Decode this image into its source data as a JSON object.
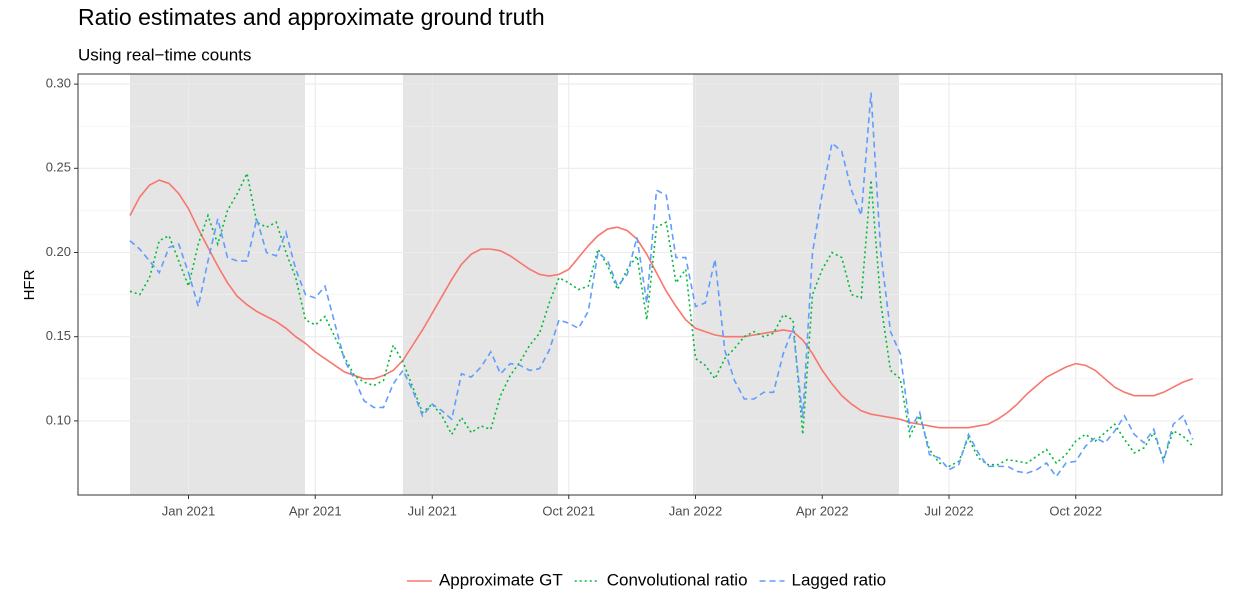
{
  "chart_data": {
    "type": "line",
    "title": "Ratio estimates and approximate ground truth",
    "subtitle": "Using real−time counts",
    "y_label": "HFR",
    "categories": [
      null,
      null,
      null,
      null,
      null,
      null,
      "Jan 2021",
      null,
      null,
      null,
      null,
      null,
      null,
      null,
      null,
      null,
      null,
      null,
      null,
      "Apr 2021",
      null,
      null,
      null,
      null,
      null,
      null,
      null,
      null,
      null,
      null,
      null,
      "Jul 2021",
      null,
      null,
      null,
      null,
      null,
      null,
      null,
      null,
      null,
      null,
      null,
      null,
      null,
      "Oct 2021",
      null,
      null,
      null,
      null,
      null,
      null,
      null,
      null,
      null,
      null,
      null,
      null,
      "Jan 2022",
      null,
      null,
      null,
      null,
      null,
      null,
      null,
      null,
      null,
      null,
      null,
      null,
      "Apr 2022",
      null,
      null,
      null,
      null,
      null,
      null,
      null,
      null,
      null,
      null,
      null,
      null,
      "Jul 2022",
      null,
      null,
      null,
      null,
      null,
      null,
      null,
      null,
      null,
      null,
      null,
      null,
      "Oct 2022",
      null,
      null,
      null,
      null,
      null,
      null,
      null,
      null,
      null,
      null,
      null,
      null
    ],
    "series": [
      {
        "name": "Approximate GT",
        "color": "#F8766D",
        "dash": "solid",
        "values": [
          0.222,
          0.233,
          0.24,
          0.243,
          0.241,
          0.235,
          0.226,
          0.214,
          0.203,
          0.192,
          0.182,
          0.174,
          0.169,
          0.165,
          0.162,
          0.159,
          0.155,
          0.15,
          0.146,
          0.141,
          0.137,
          0.133,
          0.129,
          0.127,
          0.125,
          0.125,
          0.127,
          0.13,
          0.136,
          0.145,
          0.154,
          0.164,
          0.174,
          0.184,
          0.193,
          0.199,
          0.202,
          0.202,
          0.201,
          0.198,
          0.194,
          0.19,
          0.187,
          0.186,
          0.187,
          0.19,
          0.197,
          0.204,
          0.21,
          0.214,
          0.215,
          0.213,
          0.208,
          0.199,
          0.188,
          0.177,
          0.168,
          0.16,
          0.155,
          0.153,
          0.151,
          0.15,
          0.15,
          0.15,
          0.151,
          0.152,
          0.153,
          0.154,
          0.153,
          0.148,
          0.14,
          0.13,
          0.122,
          0.115,
          0.11,
          0.106,
          0.104,
          0.103,
          0.102,
          0.101,
          0.099,
          0.098,
          0.097,
          0.096,
          0.096,
          0.096,
          0.096,
          0.097,
          0.098,
          0.101,
          0.105,
          0.11,
          0.116,
          0.121,
          0.126,
          0.129,
          0.132,
          0.134,
          0.133,
          0.13,
          0.125,
          0.12,
          0.117,
          0.115,
          0.115,
          0.115,
          0.117,
          0.12,
          0.123,
          0.125
        ]
      },
      {
        "name": "Convolutional ratio",
        "color": "#00BA38",
        "dash": "dotted",
        "values": [
          0.177,
          0.175,
          0.185,
          0.207,
          0.21,
          0.195,
          0.18,
          0.205,
          0.222,
          0.205,
          0.225,
          0.235,
          0.247,
          0.218,
          0.215,
          0.218,
          0.2,
          0.185,
          0.16,
          0.157,
          0.162,
          0.15,
          0.138,
          0.127,
          0.123,
          0.121,
          0.124,
          0.145,
          0.135,
          0.12,
          0.105,
          0.11,
          0.103,
          0.092,
          0.102,
          0.093,
          0.097,
          0.095,
          0.115,
          0.127,
          0.135,
          0.145,
          0.152,
          0.17,
          0.185,
          0.182,
          0.178,
          0.18,
          0.202,
          0.192,
          0.178,
          0.19,
          0.198,
          0.16,
          0.215,
          0.218,
          0.182,
          0.19,
          0.137,
          0.133,
          0.125,
          0.137,
          0.143,
          0.15,
          0.153,
          0.15,
          0.152,
          0.163,
          0.16,
          0.092,
          0.175,
          0.19,
          0.2,
          0.197,
          0.175,
          0.173,
          0.243,
          0.17,
          0.13,
          0.125,
          0.091,
          0.103,
          0.083,
          0.075,
          0.073,
          0.076,
          0.09,
          0.078,
          0.074,
          0.074,
          0.077,
          0.076,
          0.075,
          0.079,
          0.083,
          0.075,
          0.08,
          0.088,
          0.092,
          0.088,
          0.093,
          0.098,
          0.089,
          0.081,
          0.084,
          0.093,
          0.077,
          0.094,
          0.091,
          0.085
        ]
      },
      {
        "name": "Lagged ratio",
        "color": "#619CFF",
        "dash": "dashed",
        "values": [
          0.207,
          0.202,
          0.195,
          0.188,
          0.203,
          0.205,
          0.188,
          0.168,
          0.195,
          0.22,
          0.197,
          0.195,
          0.195,
          0.22,
          0.2,
          0.198,
          0.212,
          0.19,
          0.175,
          0.173,
          0.18,
          0.158,
          0.136,
          0.125,
          0.112,
          0.108,
          0.108,
          0.122,
          0.13,
          0.118,
          0.103,
          0.11,
          0.106,
          0.101,
          0.128,
          0.126,
          0.132,
          0.141,
          0.128,
          0.134,
          0.133,
          0.13,
          0.131,
          0.142,
          0.16,
          0.158,
          0.155,
          0.165,
          0.2,
          0.195,
          0.18,
          0.187,
          0.209,
          0.17,
          0.237,
          0.234,
          0.197,
          0.197,
          0.168,
          0.17,
          0.196,
          0.142,
          0.124,
          0.113,
          0.113,
          0.117,
          0.117,
          0.14,
          0.155,
          0.102,
          0.2,
          0.235,
          0.265,
          0.26,
          0.237,
          0.222,
          0.295,
          0.2,
          0.153,
          0.14,
          0.095,
          0.105,
          0.08,
          0.078,
          0.071,
          0.074,
          0.092,
          0.081,
          0.073,
          0.073,
          0.073,
          0.07,
          0.069,
          0.071,
          0.075,
          0.067,
          0.075,
          0.076,
          0.085,
          0.09,
          0.087,
          0.094,
          0.103,
          0.092,
          0.087,
          0.095,
          0.076,
          0.098,
          0.103,
          0.089
        ]
      }
    ],
    "ylim": [
      0.056,
      0.306
    ],
    "yticks": [
      {
        "value": 0.1,
        "label": "0.10"
      },
      0.15,
      {
        "value": 0.2,
        "label": "0.20"
      },
      0.25,
      {
        "value": 0.3,
        "label": "0.30"
      }
    ],
    "grid": true,
    "legend": "bottom"
  }
}
